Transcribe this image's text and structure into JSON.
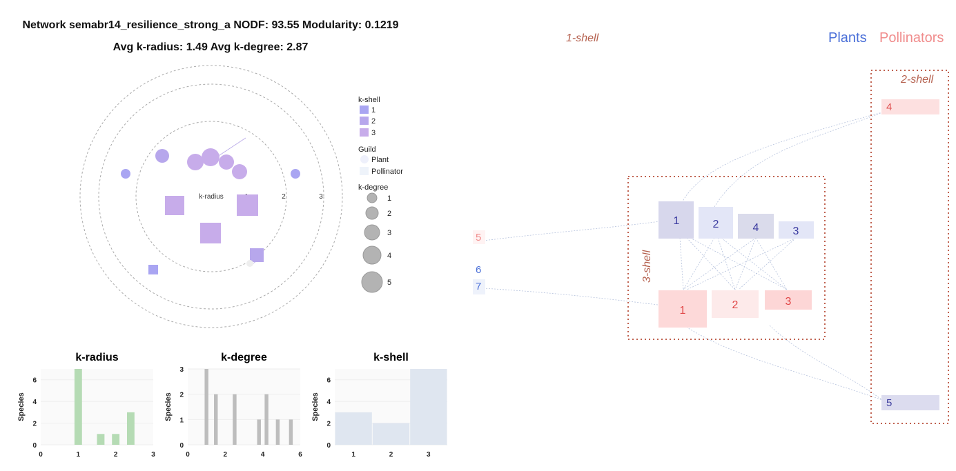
{
  "header": {
    "title_line1": "Network semabr14_resilience_strong_a NODF: 93.55 Modularity: 0.1219",
    "title_line2": "Avg k-radius: 1.49 Avg k-degree: 2.87"
  },
  "polar_plot": {
    "axis_label": "k-radius",
    "ring_labels": [
      "1",
      "2",
      "3"
    ],
    "legend": {
      "kshell_title": "k-shell",
      "kshell_items": [
        "1",
        "2",
        "3"
      ],
      "kshell_colors": [
        "#a9a5f2",
        "#b7a7ec",
        "#c7acea"
      ],
      "guild_title": "Guild",
      "guild_items": [
        "Plant",
        "Pollinator"
      ],
      "kdegree_title": "k-degree",
      "kdegree_items": [
        "1",
        "2",
        "3",
        "4",
        "5"
      ]
    }
  },
  "ziggurat": {
    "legend_plants": "Plants",
    "legend_pollinators": "Pollinators",
    "shell_1_label": "1-shell",
    "shell_2_label": "2-shell",
    "shell_3_label": "3-shell",
    "plant_color": "#4a6fd8",
    "pollinator_color": "#f08c8c",
    "shell3_plants": [
      "1",
      "2",
      "4",
      "3"
    ],
    "shell3_pollinators": [
      "1",
      "2",
      "3"
    ],
    "shell2_pollinator": "4",
    "shell2_plant": "5",
    "outlier_pollinator": "5",
    "outlier_plants": [
      "6",
      "7"
    ]
  },
  "chart_data": [
    {
      "type": "bar",
      "title": "k-radius",
      "xlabel": "",
      "ylabel": "Species",
      "x": [
        1.0,
        1.6,
        2.0,
        2.4
      ],
      "values": [
        7,
        1,
        1,
        3
      ],
      "xlim": [
        0,
        3
      ],
      "ylim": [
        0,
        7
      ],
      "xticks": [
        "0",
        "1",
        "2",
        "3"
      ],
      "yticks": [
        "0",
        "2",
        "4",
        "6"
      ],
      "color": "#b5dbb4"
    },
    {
      "type": "bar",
      "title": "k-degree",
      "xlabel": "",
      "ylabel": "Species",
      "x": [
        1.0,
        1.5,
        2.5,
        3.8,
        4.2,
        4.8,
        5.5
      ],
      "values": [
        3,
        2,
        2,
        1,
        2,
        1,
        1
      ],
      "xlim": [
        0,
        6
      ],
      "ylim": [
        0,
        3
      ],
      "xticks": [
        "0",
        "2",
        "4",
        "6"
      ],
      "yticks": [
        "0",
        "1",
        "2",
        "3"
      ],
      "color": "#bdbdbd"
    },
    {
      "type": "bar",
      "title": "k-shell",
      "xlabel": "",
      "ylabel": "Species",
      "categories": [
        "1",
        "2",
        "3"
      ],
      "values": [
        3,
        2,
        7
      ],
      "ylim": [
        0,
        7
      ],
      "yticks": [
        "0",
        "2",
        "4",
        "6"
      ],
      "color": "#dfe6f0"
    }
  ]
}
